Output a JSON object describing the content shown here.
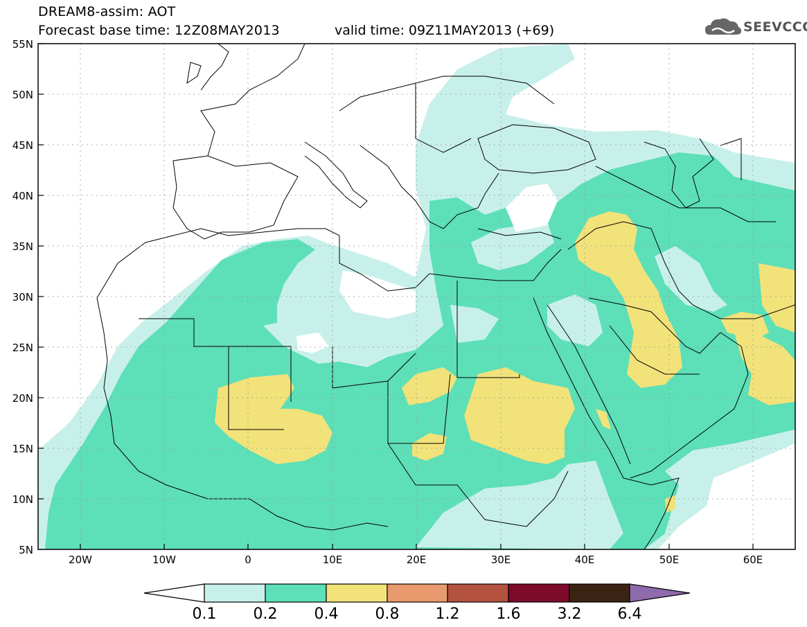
{
  "header": {
    "title_line1": "DREAM8-assim: AOT",
    "title_line2": "Forecast base time: 12Z08MAY2013",
    "valid_time": "valid time: 09Z11MAY2013 (+69)",
    "logo_text": "SEEVCCC"
  },
  "axes": {
    "lat_labels": [
      "55N",
      "50N",
      "45N",
      "40N",
      "35N",
      "30N",
      "25N",
      "20N",
      "15N",
      "10N",
      "5N"
    ],
    "lon_labels": [
      "20W",
      "10W",
      "0",
      "10E",
      "20E",
      "30E",
      "40E",
      "50E",
      "60E"
    ]
  },
  "colorbar": {
    "levels": [
      "0.1",
      "0.2",
      "0.4",
      "0.8",
      "1.2",
      "1.6",
      "3.2",
      "6.4"
    ],
    "colors": [
      "#ffffff",
      "#c8f0ea",
      "#5ddfb8",
      "#f2e27a",
      "#e89a6e",
      "#b3523f",
      "#7e0a2a",
      "#3b2314",
      "#8e6bac"
    ]
  }
}
